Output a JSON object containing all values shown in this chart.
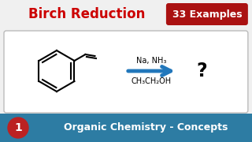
{
  "title": "Birch Reduction",
  "title_color": "#cc0000",
  "badge_text": "33 Examples",
  "badge_bg": "#aa1111",
  "badge_text_color": "#ffffff",
  "arrow_color": "#2277bb",
  "reagent_top": "Na, NH₃",
  "reagent_bottom": "CH₃CH₂OH",
  "question_mark": "?",
  "footer_text": "Organic Chemistry - Concepts",
  "footer_bg": "#2d7ca3",
  "footer_text_color": "#ffffff",
  "circle_bg": "#bb2222",
  "circle_text": "1",
  "box_bg": "#ffffff",
  "box_border": "#bbbbbb",
  "bg_color": "#f0f0f0"
}
